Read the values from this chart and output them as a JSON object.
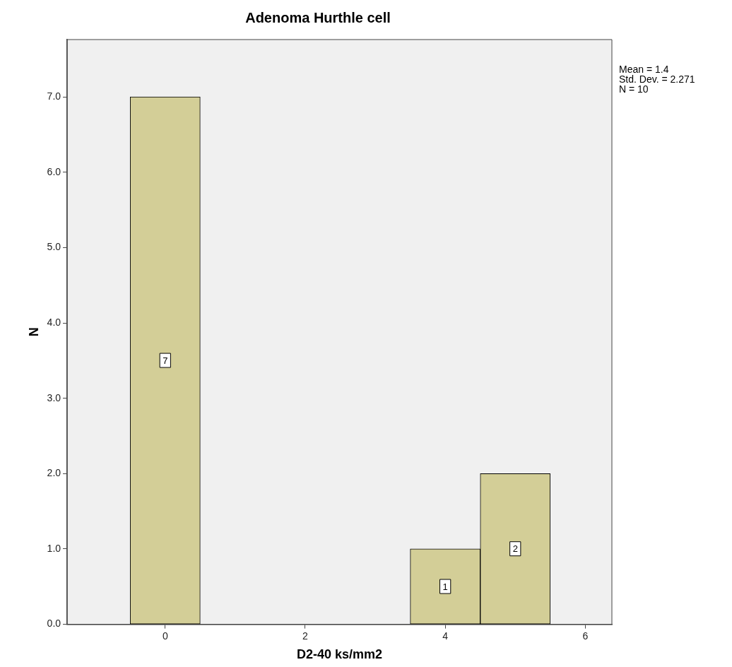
{
  "chart_data": {
    "type": "histogram",
    "title": "Adenoma Hurthle cell",
    "xlabel": "D2-40 ks/mm2",
    "ylabel": "N",
    "bins": [
      -0.5,
      0.5,
      1.5,
      2.5,
      3.5,
      4.5,
      5.5
    ],
    "values": [
      7,
      0,
      0,
      0,
      1,
      2
    ],
    "color": "#d3ce97",
    "xlim": [
      -1.4,
      6.38
    ],
    "xticks": [
      0,
      2,
      4,
      6
    ],
    "ylim": [
      0,
      7.76
    ],
    "yticks": [
      {
        "value": 0,
        "label": "0.0"
      },
      {
        "value": 1,
        "label": "1.0"
      },
      {
        "value": 2,
        "label": "2.0"
      },
      {
        "value": 3,
        "label": "3.0"
      },
      {
        "value": 4,
        "label": "4.0"
      },
      {
        "value": 5,
        "label": "5.0"
      },
      {
        "value": 6,
        "label": "6.0"
      },
      {
        "value": 7,
        "label": "7.0"
      }
    ],
    "value_labels": [
      "7",
      null,
      null,
      null,
      "1",
      "2"
    ],
    "annotations": [
      "Mean = 1.4",
      "Std. Dev. = 2.271",
      "N = 10"
    ]
  }
}
